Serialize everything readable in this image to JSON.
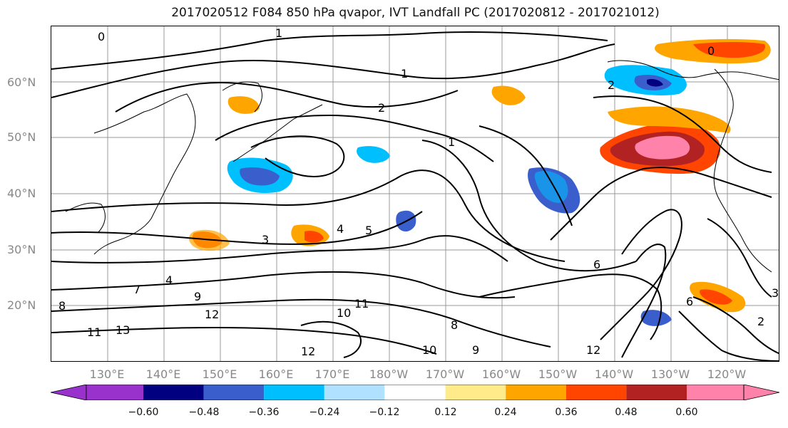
{
  "title": "2017020512 F084 850 hPa qvapor, IVT Landfall PC (2017020812 - 2017021012)",
  "lat_ticks": [
    {
      "label": "60°N",
      "value": 60
    },
    {
      "label": "50°N",
      "value": 50
    },
    {
      "label": "40°N",
      "value": 40
    },
    {
      "label": "30°N",
      "value": 30
    },
    {
      "label": "20°N",
      "value": 20
    }
  ],
  "lon_ticks": [
    {
      "label": "130°E",
      "value": 130
    },
    {
      "label": "140°E",
      "value": 140
    },
    {
      "label": "150°E",
      "value": 150
    },
    {
      "label": "160°E",
      "value": 160
    },
    {
      "label": "170°E",
      "value": 170
    },
    {
      "label": "180°W",
      "value": 180
    },
    {
      "label": "170°W",
      "value": 190
    },
    {
      "label": "160°W",
      "value": 200
    },
    {
      "label": "150°W",
      "value": 210
    },
    {
      "label": "140°W",
      "value": 220
    },
    {
      "label": "130°W",
      "value": 230
    },
    {
      "label": "120°W",
      "value": 240
    }
  ],
  "colorbar": {
    "colors": [
      "#9932cc",
      "#000080",
      "#3a5fcd",
      "#00bfff",
      "#b0e2ff",
      "#ffffff",
      "#ffeb8a",
      "#ffa500",
      "#ff4500",
      "#b22222",
      "#ff82ab"
    ],
    "labels": [
      "−0.60",
      "−0.48",
      "−0.36",
      "−0.24",
      "−0.12",
      "0.12",
      "0.24",
      "0.36",
      "0.48",
      "0.60"
    ]
  },
  "contour_labels": [
    "1",
    "1",
    "1",
    "2",
    "2",
    "3",
    "4",
    "4",
    "5",
    "6",
    "6",
    "7",
    "8",
    "8",
    "9",
    "9",
    "10",
    "10",
    "11",
    "11",
    "12",
    "12",
    "12",
    "13",
    "3",
    "2",
    "0",
    "0"
  ]
}
